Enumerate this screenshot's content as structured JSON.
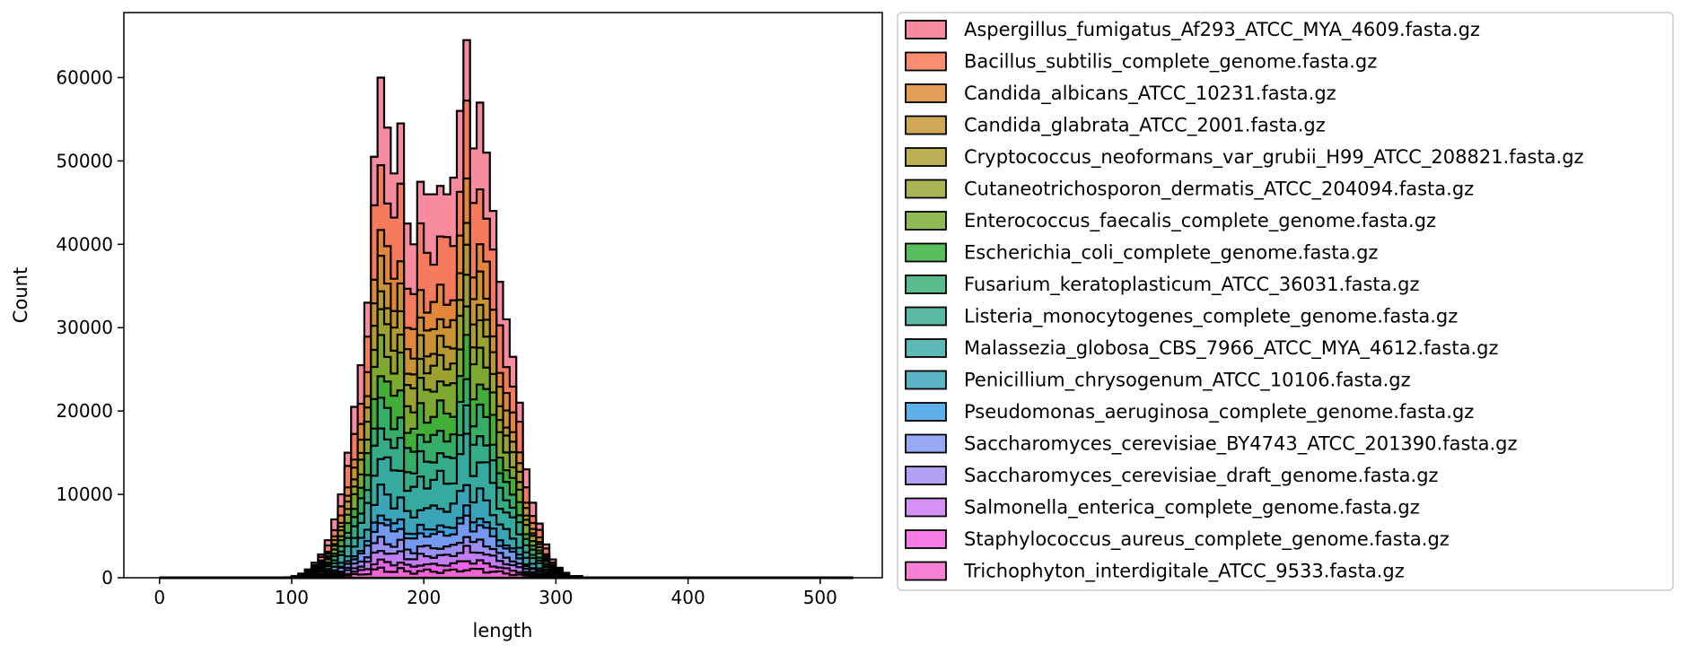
{
  "chart_data": {
    "type": "histogram",
    "stacking": "stacked",
    "element": "step",
    "xlabel": "length",
    "ylabel": "Count",
    "xlim": [
      -27,
      547
    ],
    "ylim": [
      0,
      67800
    ],
    "xticks": [
      0,
      100,
      200,
      300,
      400,
      500
    ],
    "yticks": [
      0,
      10000,
      20000,
      30000,
      40000,
      50000,
      60000
    ],
    "grid": false,
    "legend_position": "outside-right",
    "bins": [
      [
        0,
        75
      ],
      [
        75,
        80
      ],
      [
        80,
        85
      ],
      [
        85,
        90
      ],
      [
        90,
        95
      ],
      [
        95,
        100
      ],
      [
        100,
        105
      ],
      [
        105,
        110
      ],
      [
        110,
        115
      ],
      [
        115,
        120
      ],
      [
        120,
        125
      ],
      [
        125,
        130
      ],
      [
        130,
        135
      ],
      [
        135,
        140
      ],
      [
        140,
        145
      ],
      [
        145,
        150
      ],
      [
        150,
        155
      ],
      [
        155,
        160
      ],
      [
        160,
        165
      ],
      [
        165,
        170
      ],
      [
        170,
        175
      ],
      [
        175,
        180
      ],
      [
        180,
        185
      ],
      [
        185,
        190
      ],
      [
        190,
        195
      ],
      [
        195,
        200
      ],
      [
        200,
        205
      ],
      [
        205,
        210
      ],
      [
        210,
        215
      ],
      [
        215,
        220
      ],
      [
        220,
        225
      ],
      [
        225,
        230
      ],
      [
        230,
        235
      ],
      [
        235,
        240
      ],
      [
        240,
        245
      ],
      [
        245,
        250
      ],
      [
        250,
        255
      ],
      [
        255,
        260
      ],
      [
        260,
        265
      ],
      [
        265,
        270
      ],
      [
        270,
        275
      ],
      [
        275,
        280
      ],
      [
        280,
        285
      ],
      [
        285,
        290
      ],
      [
        290,
        295
      ],
      [
        295,
        300
      ],
      [
        300,
        305
      ],
      [
        305,
        310
      ],
      [
        310,
        320
      ],
      [
        320,
        525
      ]
    ],
    "totals": [
      0,
      0,
      0,
      0,
      0,
      50,
      200,
      500,
      1000,
      1800,
      2800,
      4500,
      7000,
      10000,
      15000,
      20500,
      25500,
      33000,
      50500,
      60000,
      54000,
      48500,
      54500,
      42500,
      40000,
      47500,
      46000,
      46000,
      47000,
      46000,
      48000,
      56000,
      64500,
      51500,
      57000,
      51000,
      44000,
      35500,
      31000,
      26500,
      21000,
      13000,
      9000,
      6500,
      4000,
      2200,
      1200,
      600,
      200,
      0
    ],
    "series": [
      {
        "name": "Aspergillus_fumigatus_Af293_ATCC_MYA_4609.fasta.gz",
        "color": "#f77189"
      },
      {
        "name": "Bacillus_subtilis_complete_genome.fasta.gz",
        "color": "#f7754f"
      },
      {
        "name": "Candida_albicans_ATCC_10231.fasta.gz",
        "color": "#dc8932"
      },
      {
        "name": "Candida_glabrata_ATCC_2001.fasta.gz",
        "color": "#c39532"
      },
      {
        "name": "Cryptococcus_neoformans_var_grubii_H99_ATCC_208821.fasta.gz",
        "color": "#ae9d31"
      },
      {
        "name": "Cutaneotrichosporon_dermatis_ATCC_204094.fasta.gz",
        "color": "#97a431"
      },
      {
        "name": "Enterococcus_faecalis_complete_genome.fasta.gz",
        "color": "#77ab31"
      },
      {
        "name": "Escherichia_coli_complete_genome.fasta.gz",
        "color": "#33b039"
      },
      {
        "name": "Fusarium_keratoplasticum_ATCC_36031.fasta.gz",
        "color": "#35ad73"
      },
      {
        "name": "Listeria_monocytogenes_complete_genome.fasta.gz",
        "color": "#36ab8f"
      },
      {
        "name": "Malassezia_globosa_CBS_7966_ATCC_MYA_4612.fasta.gz",
        "color": "#38a9a5"
      },
      {
        "name": "Penicillium_chrysogenum_ATCC_10106.fasta.gz",
        "color": "#3ba3bb"
      },
      {
        "name": "Pseudomonas_aeruginosa_complete_genome.fasta.gz",
        "color": "#3c9ee4"
      },
      {
        "name": "Saccharomyces_cerevisiae_BY4743_ATCC_201390.fasta.gz",
        "color": "#8197f4"
      },
      {
        "name": "Saccharomyces_cerevisiae_draft_genome.fasta.gz",
        "color": "#a48cf4"
      },
      {
        "name": "Salmonella_enterica_complete_genome.fasta.gz",
        "color": "#cc79f4"
      },
      {
        "name": "Staphylococcus_aureus_complete_genome.fasta.gz",
        "color": "#f45fe3"
      },
      {
        "name": "Trichophyton_interdigitale_ATCC_9533.fasta.gz",
        "color": "#f565cc"
      }
    ]
  }
}
